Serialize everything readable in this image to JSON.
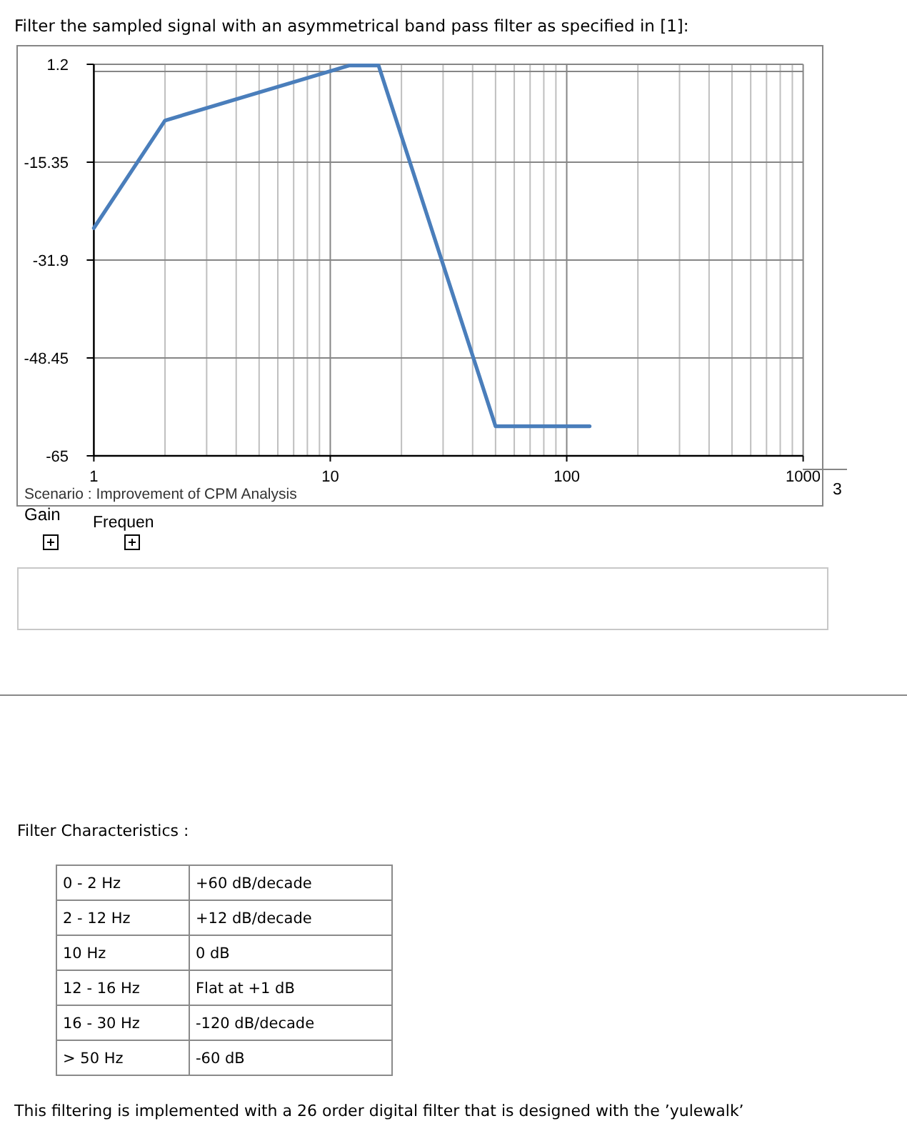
{
  "chart_data": [
    {
      "type": "line",
      "title": "Filter the sampled signal with an asymmetrical band pass filter as specified in [1]:",
      "xlabel": "Frequen",
      "ylabel": "Gain",
      "annotations": [
        "Scenario : Improvement of CPM Analysis",
        "3"
      ],
      "x": [
        1,
        2,
        12,
        16,
        50,
        125
      ],
      "series": [
        {
          "color": "#4a7ebb",
          "values": [
            -26.5,
            -8.3,
            1,
            1,
            -60,
            -60
          ]
        }
      ],
      "log": "x",
      "xlim": [
        1,
        1000
      ],
      "xticks": [
        1,
        {
          "value": 2,
          "label": null
        },
        {
          "value": 3,
          "label": null
        },
        {
          "value": 4,
          "label": null
        },
        {
          "value": 5,
          "label": null
        },
        {
          "value": 6,
          "label": null
        },
        {
          "value": 7,
          "label": null
        },
        {
          "value": 8,
          "label": null
        },
        {
          "value": 9,
          "label": null
        },
        10,
        {
          "value": 20,
          "label": null
        },
        {
          "value": 30,
          "label": null
        },
        {
          "value": 40,
          "label": null
        },
        {
          "value": 50,
          "label": null
        },
        {
          "value": 60,
          "label": null
        },
        {
          "value": 70,
          "label": null
        },
        {
          "value": 80,
          "label": null
        },
        {
          "value": 90,
          "label": null
        },
        100,
        {
          "value": 200,
          "label": null
        },
        {
          "value": 300,
          "label": null
        },
        {
          "value": 400,
          "label": null
        },
        {
          "value": 500,
          "label": null
        },
        {
          "value": 600,
          "label": null
        },
        {
          "value": 700,
          "label": null
        },
        {
          "value": 800,
          "label": null
        },
        {
          "value": 900,
          "label": null
        },
        1000
      ],
      "ylim": [
        -65,
        1.2
      ],
      "yticks": [
        -65,
        -48.45,
        -31.9,
        -15.35,
        1.2
      ],
      "grid": true,
      "ref_lines": [
        {
          "axis": "y",
          "value": 0,
          "color": "#868686"
        }
      ],
      "marker": "none",
      "line_style": "solid"
    },
    {
      "type": "other",
      "title": "Filter Characteristics :",
      "cell_labels": [
        [
          "0 - 2 Hz",
          "+60 dB/decade"
        ],
        [
          "2 - 12 Hz",
          "+12 dB/decade"
        ],
        [
          "10 Hz",
          "0 dB"
        ],
        [
          "12 - 16 Hz",
          "Flat at +1 dB"
        ],
        [
          "16 - 30 Hz",
          "-120 dB/decade"
        ],
        [
          "> 50 Hz",
          "-60 dB"
        ]
      ],
      "annotations": [
        "This filtering is implemented with a 26 order digital filter that is designed with the ’yulewalk’"
      ]
    }
  ]
}
